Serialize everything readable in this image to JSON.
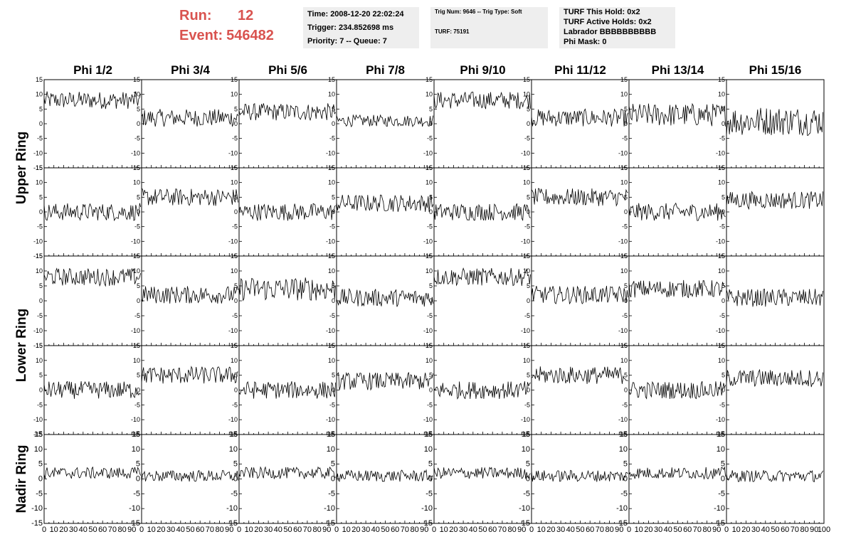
{
  "header": {
    "run_label": "Run:",
    "run_value": "12",
    "event_label": "Event:",
    "event_value": "546482",
    "accent_color": "#d9534f",
    "time": "Time: 2008-12-20 22:02:24",
    "trigger": "Trigger: 234.852698 ms",
    "priority": "Priority: 7 -- Queue: 7",
    "trig_num": "Trig Num: 9646 -- Trig Type: Soft",
    "turf": "TURF: 75191",
    "turf_this_hold": "TURF This Hold: 0x2",
    "turf_active_holds": "TURF Active Holds: 0x2",
    "labrador": "Labrador BBBBBBBBBB",
    "phi_mask": "Phi Mask: 0"
  },
  "chart_data": {
    "type": "line",
    "columns": [
      "Phi 1/2",
      "Phi 3/4",
      "Phi 5/6",
      "Phi 7/8",
      "Phi 9/10",
      "Phi 11/12",
      "Phi 13/14",
      "Phi 15/16"
    ],
    "ring_labels": [
      "Upper Ring",
      "Lower Ring",
      "Nadir Ring"
    ],
    "rows": 5,
    "xlim": [
      0,
      100
    ],
    "ylim": [
      -15,
      15
    ],
    "y_ticks": [
      15,
      10,
      5,
      0,
      -5,
      -10,
      -15
    ],
    "x_tick_labels": [
      "0",
      "10",
      "20",
      "30",
      "40",
      "50",
      "60",
      "70",
      "80",
      "90",
      "100"
    ],
    "samples_per_trace": 100,
    "grid": false,
    "trace_baselines": [
      [
        8,
        2,
        4,
        1,
        8,
        2,
        3,
        1
      ],
      [
        0,
        5,
        0,
        3,
        0,
        5,
        0,
        4
      ],
      [
        8,
        2,
        4,
        1,
        8,
        2,
        4,
        1
      ],
      [
        0,
        5,
        0,
        3,
        0,
        5,
        0,
        4
      ],
      [
        2,
        1,
        2,
        1,
        2,
        1,
        2,
        1
      ]
    ],
    "trace_noise_amplitude": [
      [
        3,
        3,
        3,
        2,
        3,
        3,
        4,
        5
      ],
      [
        3,
        3,
        3,
        3,
        3,
        3,
        3,
        3
      ],
      [
        3,
        3,
        4,
        3,
        3,
        3,
        3,
        3
      ],
      [
        3,
        3,
        3,
        3,
        3,
        3,
        3,
        3
      ],
      [
        2,
        2,
        2,
        2,
        2,
        2,
        2,
        2
      ]
    ]
  }
}
